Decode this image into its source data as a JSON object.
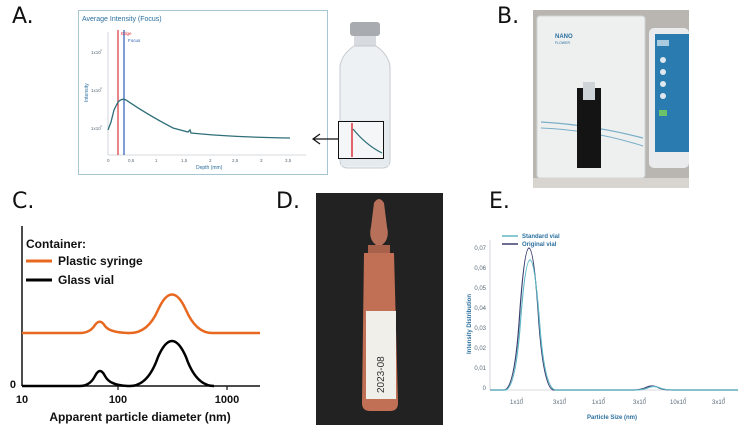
{
  "panels": {
    "a": {
      "letter": "A.",
      "chart_title": "Average Intensity (Focus)",
      "ylabel": "Intensity",
      "xlabel": "Depth (mm)",
      "edge_label": "Edge",
      "focus_label": "Focus",
      "yticks": [
        "1x10",
        "1x10",
        "1x10"
      ],
      "yticks_exp": [
        "4",
        "4",
        "4"
      ],
      "xticks": [
        "0",
        "0,5",
        "1",
        "1,5",
        "2",
        "2,5",
        "3",
        "3,5"
      ],
      "colors": {
        "edge": "#d9343a",
        "focus": "#2b5bb5",
        "curve": "#2f6f7a"
      }
    },
    "b": {
      "letter": "B.",
      "logo_text": "NANO",
      "logo_subtext": "FLOWER"
    },
    "c": {
      "letter": "C.",
      "legend_title": "Container:",
      "xlabel": "Apparent particle diameter (nm)",
      "xticks": [
        "10",
        "100",
        "1000"
      ],
      "ytick": "0",
      "series_colors": {
        "plastic": "#e8681f",
        "glass": "#000000"
      }
    },
    "d": {
      "letter": "D.",
      "label_text": "2023-08"
    },
    "e": {
      "letter": "E.",
      "ylabel": "Intensity Distribution",
      "xlabel": "Particle Size (nm)",
      "yticks": [
        "0,07",
        "0,06",
        "0,05",
        "0,04",
        "0,03",
        "0,02",
        "0,01",
        "0"
      ],
      "xticks": [
        "1x10",
        "3x10",
        "1x10",
        "3x10",
        "10x10",
        "3x10"
      ],
      "xticks_exp": [
        "1",
        "1",
        "2",
        "2",
        "2",
        "3"
      ],
      "series_colors": {
        "standard": "#5fb8c6",
        "original": "#3a3d6e"
      }
    }
  },
  "chart_data": [
    {
      "type": "line",
      "panel": "C",
      "xlabel": "Apparent particle diameter (nm)",
      "ylabel": "",
      "x_scale": "log",
      "xlim": [
        10,
        2000
      ],
      "legend_placement": "top-left",
      "series": [
        {
          "name": "Plastic syringe",
          "peaks": [
            {
              "x": 55,
              "height": 0.25
            },
            {
              "x": 300,
              "height": 0.9
            }
          ],
          "baseline_offset": 1.0
        },
        {
          "name": "Glass vial",
          "peaks": [
            {
              "x": 55,
              "height": 0.3
            },
            {
              "x": 300,
              "height": 1.0
            }
          ],
          "baseline_offset": 0
        }
      ]
    },
    {
      "type": "line",
      "panel": "E",
      "xlabel": "Particle Size (nm)",
      "ylabel": "Intensity Distribution",
      "x_scale": "log",
      "ylim": [
        0,
        0.075
      ],
      "legend_placement": "top-left",
      "series": [
        {
          "name": "Standard vial",
          "peaks": [
            {
              "x": 12,
              "y": 0.065
            },
            {
              "x": 300,
              "y": 0.001
            }
          ]
        },
        {
          "name": "Original vial",
          "peaks": [
            {
              "x": 12,
              "y": 0.07
            },
            {
              "x": 300,
              "y": 0.0012
            }
          ]
        }
      ]
    }
  ]
}
